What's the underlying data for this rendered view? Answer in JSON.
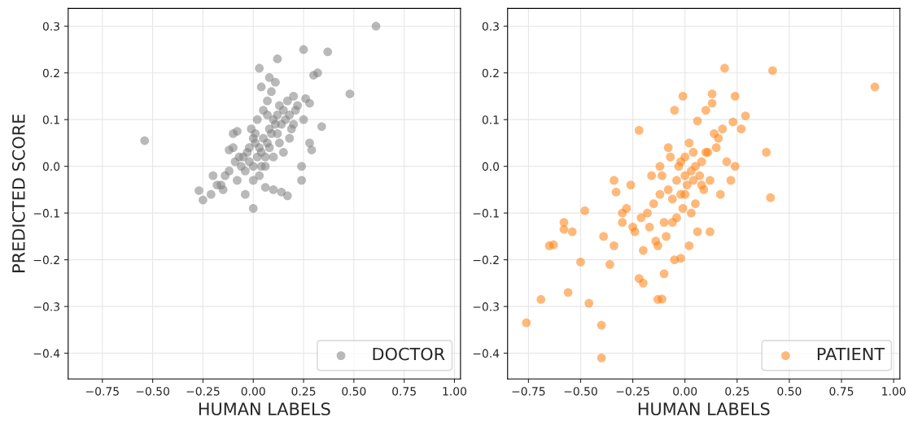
{
  "chart_data": [
    {
      "type": "scatter",
      "xlabel": "HUMAN LABELS",
      "ylabel": "PREDICTED SCORE",
      "xlim": [
        -0.92,
        1.03
      ],
      "ylim": [
        -0.455,
        0.338
      ],
      "xticks": [
        {
          "value": -0.75,
          "label": "−0.75"
        },
        {
          "value": -0.5,
          "label": "−0.50"
        },
        {
          "value": -0.25,
          "label": "−0.25"
        },
        {
          "value": 0,
          "label": "0.00"
        },
        {
          "value": 0.25,
          "label": "0.25"
        },
        {
          "value": 0.5,
          "label": "0.50"
        },
        {
          "value": 0.75,
          "label": "0.75"
        },
        {
          "value": 1,
          "label": "1.00"
        }
      ],
      "yticks": [
        {
          "value": -0.4,
          "label": "−0.4"
        },
        {
          "value": -0.3,
          "label": "−0.3"
        },
        {
          "value": -0.2,
          "label": "−0.2"
        },
        {
          "value": -0.1,
          "label": "−0.1"
        },
        {
          "value": 0,
          "label": "0.0"
        },
        {
          "value": 0.1,
          "label": "0.1"
        },
        {
          "value": 0.2,
          "label": "0.2"
        },
        {
          "value": 0.3,
          "label": "0.3"
        }
      ],
      "grid": true,
      "legend": "bottom right",
      "marker": "circle",
      "series": [
        {
          "name": "DOCTOR",
          "color": "#808080",
          "x": [
            0.61,
            -0.54,
            0.48,
            0.37,
            0.25,
            0.32,
            0.3,
            0.12,
            0.03,
            0.34,
            -0.27,
            -0.25,
            0.0,
            0.17,
            0.14,
            0.28,
            0.29,
            0.24,
            0.24,
            0.1,
            0.06,
            -0.1,
            -0.08,
            -0.12,
            -0.15,
            -0.18,
            -0.2,
            -0.21,
            0.13,
            0.17,
            0.2,
            0.22,
            0.26,
            0.25,
            0.28,
            0.2,
            0.05,
            0.08,
            0.1,
            0.12,
            0.15,
            0.07,
            0.04,
            0.09,
            0.11,
            0.02,
            0.0,
            -0.02,
            -0.04,
            -0.06,
            -0.08,
            0.03,
            0.06,
            0.01,
            0.08,
            0.12,
            0.14,
            0.16,
            0.18,
            0.0,
            -0.03,
            -0.05,
            0.05,
            0.07,
            0.09,
            -0.01,
            0.02,
            0.04,
            0.1,
            0.13,
            -0.07,
            -0.1,
            -0.12,
            -0.14,
            0.0,
            0.03,
            0.06,
            0.15,
            0.18,
            0.11,
            -0.02,
            0.01,
            -0.09,
            -0.16,
            0.04,
            0.08,
            0.21,
            0.19,
            0.07,
            -0.04
          ],
          "values": [
            0.3,
            0.055,
            0.155,
            0.245,
            0.25,
            0.2,
            0.195,
            0.23,
            0.21,
            0.085,
            -0.052,
            -0.072,
            -0.09,
            -0.063,
            -0.055,
            0.05,
            0.035,
            0.0,
            -0.03,
            -0.05,
            -0.045,
            0.07,
            0.075,
            0.035,
            -0.05,
            -0.04,
            -0.02,
            -0.06,
            0.13,
            0.14,
            0.15,
            0.13,
            0.145,
            0.1,
            0.135,
            0.09,
            0.06,
            0.08,
            0.1,
            0.11,
            0.12,
            0.05,
            0.03,
            0.07,
            0.09,
            0.02,
            0.0,
            0.01,
            -0.01,
            0.0,
            -0.03,
            0.04,
            0.02,
            0.05,
            0.04,
            0.07,
            0.09,
            0.1,
            0.11,
            0.06,
            0.03,
            0.02,
            0.12,
            0.14,
            0.16,
            0.08,
            0.1,
            0.0,
            0.02,
            0.05,
            0.02,
            0.04,
            -0.01,
            -0.02,
            -0.03,
            -0.02,
            0.0,
            0.03,
            0.06,
            0.18,
            0.04,
            0.07,
            0.01,
            -0.04,
            0.17,
            0.19,
            0.12,
            0.08,
            0.11,
            -0.06
          ]
        }
      ]
    },
    {
      "type": "scatter",
      "xlabel": "HUMAN LABELS",
      "xlim": [
        -0.85,
        1.03
      ],
      "ylim": [
        -0.455,
        0.338
      ],
      "xticks": [
        {
          "value": -0.75,
          "label": "−0.75"
        },
        {
          "value": -0.5,
          "label": "−0.50"
        },
        {
          "value": -0.25,
          "label": "−0.25"
        },
        {
          "value": 0,
          "label": "0.00"
        },
        {
          "value": 0.25,
          "label": "0.25"
        },
        {
          "value": 0.5,
          "label": "0.50"
        },
        {
          "value": 0.75,
          "label": "0.75"
        },
        {
          "value": 1,
          "label": "1.00"
        }
      ],
      "yticks": [
        {
          "value": -0.4,
          "label": "−0.4"
        },
        {
          "value": -0.3,
          "label": "−0.3"
        },
        {
          "value": -0.2,
          "label": "−0.2"
        },
        {
          "value": -0.1,
          "label": "−0.1"
        },
        {
          "value": 0,
          "label": "0.0"
        },
        {
          "value": 0.1,
          "label": "0.1"
        },
        {
          "value": 0.2,
          "label": "0.2"
        },
        {
          "value": 0.3,
          "label": "0.3"
        }
      ],
      "grid": true,
      "legend": "bottom right",
      "marker": "circle",
      "series": [
        {
          "name": "PATIENT",
          "color": "#ff7f0e",
          "x": [
            -0.76,
            -0.69,
            -0.56,
            -0.46,
            -0.4,
            -0.4,
            -0.13,
            -0.11,
            -0.65,
            -0.63,
            -0.58,
            -0.58,
            -0.54,
            -0.5,
            -0.48,
            -0.39,
            -0.36,
            -0.34,
            0.91,
            0.42,
            0.19,
            0.39,
            0.41,
            -0.01,
            0.13,
            0.13,
            0.24,
            0.29,
            0.27,
            0.23,
            -0.22,
            -0.05,
            0.1,
            0.06,
            -0.34,
            -0.33,
            -0.2,
            -0.22,
            -0.1,
            -0.05,
            -0.02,
            0.02,
            0.06,
            0.12,
            0.17,
            0.22,
            0.24,
            0.2,
            0.15,
            -0.3,
            -0.28,
            -0.25,
            -0.18,
            -0.15,
            -0.12,
            -0.08,
            -0.04,
            0.0,
            0.03,
            0.05,
            0.08,
            0.1,
            -0.06,
            -0.02,
            0.01,
            0.04,
            -0.1,
            -0.14,
            -0.2,
            -0.24,
            -0.3,
            -0.26,
            -0.16,
            -0.12,
            -0.07,
            -0.03,
            0.0,
            0.02,
            0.07,
            0.11,
            0.14,
            -0.01,
            -0.04,
            -0.09,
            0.05,
            0.09,
            -0.17,
            -0.21,
            -0.13,
            -0.06,
            0.03,
            0.12,
            0.16,
            0.18,
            -0.08,
            -0.02,
            0.0,
            -0.11,
            0.08,
            0.04
          ],
          "values": [
            -0.335,
            -0.285,
            -0.27,
            -0.293,
            -0.34,
            -0.41,
            -0.285,
            -0.284,
            -0.17,
            -0.168,
            -0.12,
            -0.135,
            -0.14,
            -0.205,
            -0.095,
            -0.15,
            -0.21,
            -0.17,
            0.17,
            0.205,
            0.21,
            0.03,
            -0.067,
            0.15,
            0.155,
            0.135,
            0.15,
            0.108,
            0.08,
            0.095,
            0.077,
            0.12,
            0.12,
            0.097,
            -0.03,
            -0.055,
            -0.25,
            -0.24,
            -0.23,
            -0.2,
            -0.197,
            -0.17,
            -0.14,
            -0.14,
            -0.06,
            -0.03,
            0.0,
            0.01,
            0.04,
            -0.12,
            -0.09,
            -0.13,
            -0.1,
            -0.08,
            -0.06,
            -0.05,
            -0.03,
            -0.02,
            -0.01,
            0.0,
            0.01,
            0.03,
            -0.07,
            -0.06,
            -0.04,
            -0.03,
            -0.12,
            -0.16,
            -0.18,
            -0.14,
            -0.1,
            -0.04,
            -0.02,
            0.0,
            0.02,
            0.0,
            0.02,
            0.05,
            -0.02,
            0.03,
            0.07,
            -0.09,
            -0.11,
            -0.15,
            -0.08,
            -0.05,
            -0.13,
            -0.11,
            -0.17,
            -0.12,
            -0.1,
            -0.03,
            0.06,
            0.08,
            0.04,
            0.01,
            -0.06,
            -0.02,
            -0.04,
            0.03
          ]
        }
      ]
    }
  ]
}
